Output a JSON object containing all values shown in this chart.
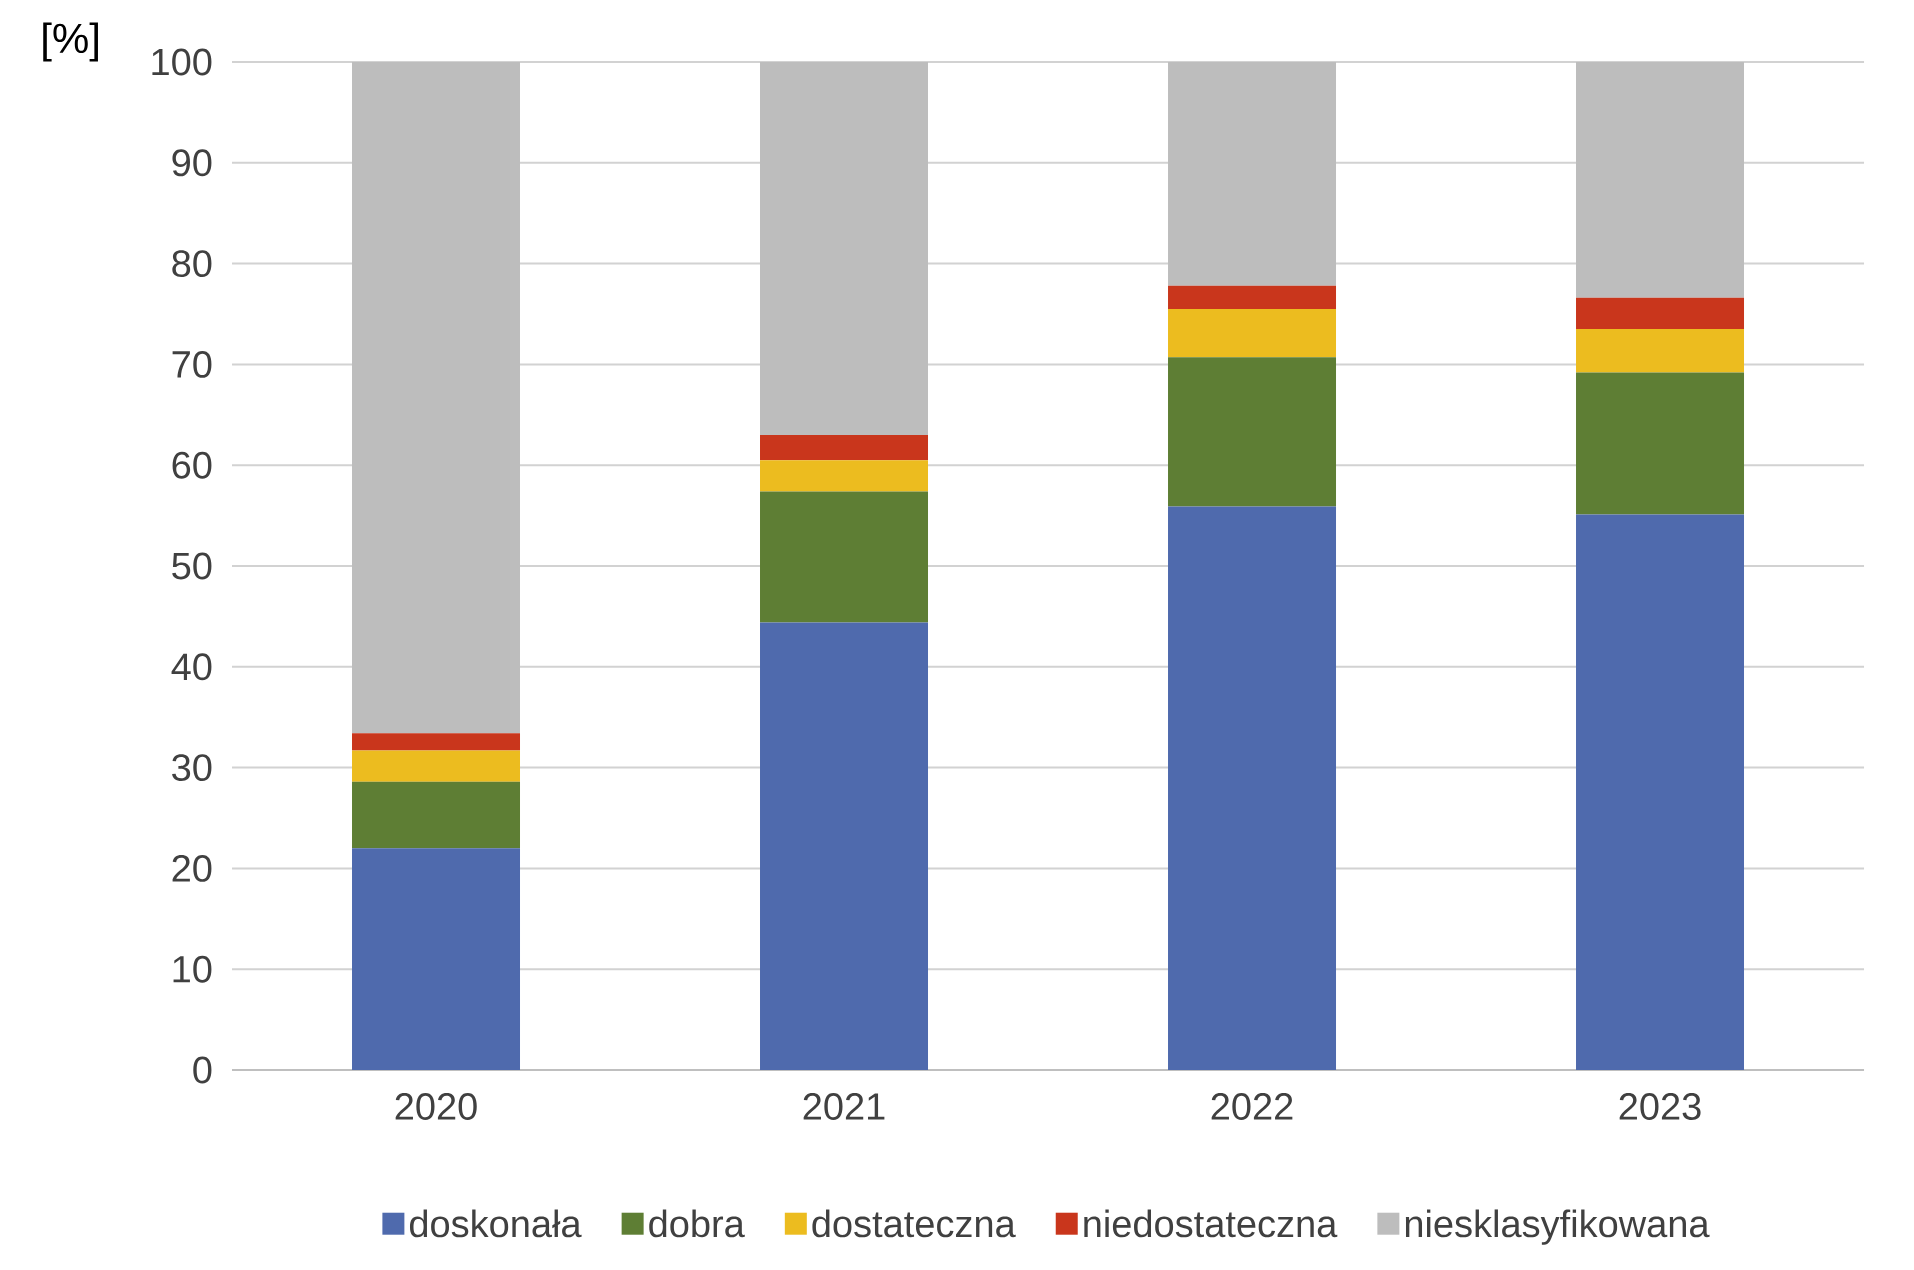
{
  "chart_data": {
    "type": "bar",
    "stacked": true,
    "ylabel": "[%]",
    "categories": [
      "2020",
      "2021",
      "2022",
      "2023"
    ],
    "series": [
      {
        "name": "doskonała",
        "color": "#4f6aad",
        "values": [
          22.0,
          44.4,
          55.9,
          55.1
        ]
      },
      {
        "name": "dobra",
        "color": "#5e7e34",
        "values": [
          6.6,
          13.0,
          14.8,
          14.1
        ]
      },
      {
        "name": "dostateczna",
        "color": "#ecbc1f",
        "values": [
          3.1,
          3.1,
          4.8,
          4.3
        ]
      },
      {
        "name": "niedostateczna",
        "color": "#c9361c",
        "values": [
          1.7,
          2.5,
          2.3,
          3.1
        ]
      },
      {
        "name": "niesklasyfikowana",
        "color": "#bdbdbd",
        "values": [
          66.6,
          37.0,
          22.2,
          23.4
        ]
      }
    ],
    "ylim": [
      0,
      100
    ],
    "yticks": [
      0,
      10,
      20,
      30,
      40,
      50,
      60,
      70,
      80,
      90,
      100
    ],
    "grid": "y",
    "legend": "bottom"
  }
}
